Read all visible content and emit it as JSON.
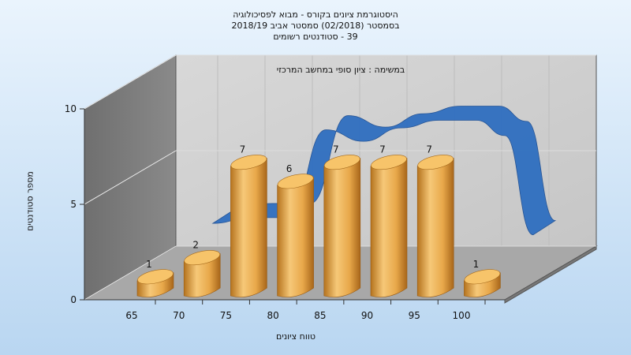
{
  "titles": [
    "היסטוגרמת ציונים בקורס - מבוא לפסיכולוגיה",
    "בסמסטר  (02/2018)  סמסטר אביב 2018/19",
    "39 - סטודנטים רשומים"
  ],
  "annotation": "במשימה : ציון סופי במחשב המרכזי",
  "colors": {
    "background_top": "#eaf4fd",
    "background_bottom": "#b9d6f1",
    "bar": "#e8a84a",
    "ribbon": "#2f6fc0",
    "back_wall": "#c6c6c6",
    "side_wall": "#8a8a8a",
    "floor": "#a8a8a8"
  },
  "chart_data": {
    "type": "bar",
    "title": "היסטוגרמת ציונים בקורס - מבוא לפסיכולוגיה",
    "xlabel": "טווח ציונים",
    "ylabel": "מספר סטודנטים",
    "categories": [
      "65",
      "70",
      "75",
      "80",
      "85",
      "90",
      "95",
      "100"
    ],
    "ylim": [
      0,
      10
    ],
    "yticks": [
      0,
      5,
      10
    ],
    "grid": true,
    "series": [
      {
        "type": "bar",
        "bar_categories": [
          "65",
          "70",
          "75",
          "80",
          "85",
          "90",
          "95",
          "100"
        ],
        "values": [
          1,
          2,
          7,
          6,
          7,
          7,
          7,
          1
        ]
      },
      {
        "type": "line",
        "x": [
          68,
          72,
          76,
          80,
          84,
          88,
          92,
          96,
          99,
          102
        ],
        "values": [
          3.2,
          3.5,
          3.5,
          8.1,
          7.5,
          8.2,
          8.6,
          8.6,
          7.8,
          2.6
        ]
      }
    ]
  }
}
